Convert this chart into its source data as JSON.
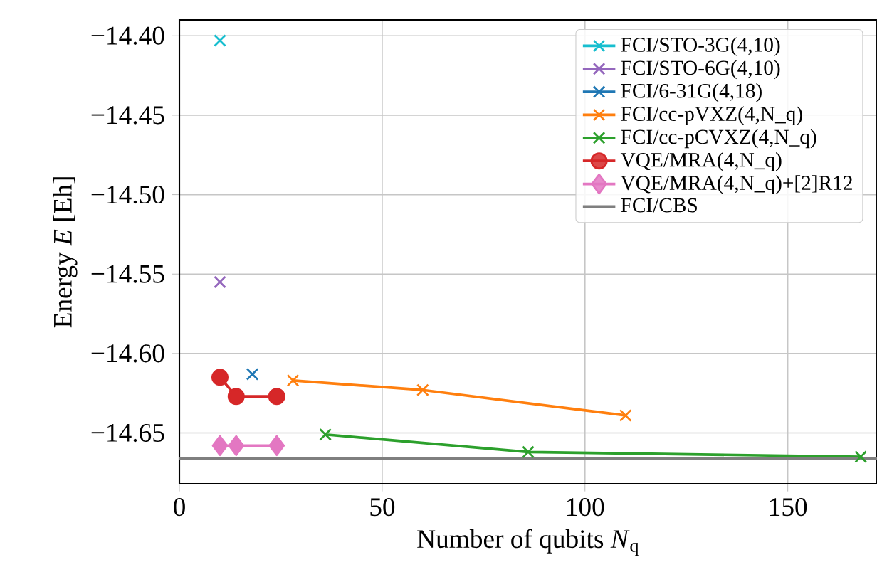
{
  "chart_data": {
    "type": "line",
    "xlabel": "Number of qubits *N*$_{q}$",
    "ylabel": "Energy *E* [Eh]",
    "xlim": [
      0,
      172
    ],
    "ylim": [
      -14.682,
      -14.39
    ],
    "xticks": [
      0,
      50,
      100,
      150
    ],
    "yticks": [
      {
        "value": -14.4,
        "label": "−14.40"
      },
      {
        "value": -14.45,
        "label": "−14.45"
      },
      {
        "value": -14.5,
        "label": "−14.50"
      },
      {
        "value": -14.55,
        "label": "−14.55"
      },
      {
        "value": -14.6,
        "label": "−14.60"
      },
      {
        "value": -14.65,
        "label": "−14.65"
      }
    ],
    "grid": true,
    "legend": "top right",
    "series": [
      {
        "name": "FCI/STO-3G(4,10)",
        "color": "#17becf",
        "marker": "cross",
        "x": [
          10
        ],
        "values": [
          -14.403
        ]
      },
      {
        "name": "FCI/STO-6G(4,10)",
        "color": "#9467bd",
        "marker": "cross",
        "x": [
          10
        ],
        "values": [
          -14.555
        ]
      },
      {
        "name": "FCI/6-31G(4,18)",
        "color": "#1f77b4",
        "marker": "cross",
        "x": [
          18
        ],
        "values": [
          -14.613
        ]
      },
      {
        "name": "FCI/cc-pVXZ(4,N_q)",
        "color": "#ff7f0e",
        "marker": "cross",
        "x": [
          28,
          60,
          110
        ],
        "values": [
          -14.617,
          -14.623,
          -14.639
        ]
      },
      {
        "name": "FCI/cc-pCVXZ(4,N_q)",
        "color": "#2ca02c",
        "marker": "cross",
        "x": [
          36,
          86,
          168
        ],
        "values": [
          -14.651,
          -14.662,
          -14.665
        ]
      },
      {
        "name": "VQE/MRA(4,N_q)",
        "color": "#d62728",
        "marker": "circle",
        "x": [
          10,
          14,
          24
        ],
        "values": [
          -14.615,
          -14.627,
          -14.627
        ]
      },
      {
        "name": "VQE/MRA(4,N_q)+[2]R12",
        "color": "#e377c2",
        "marker": "diamond",
        "x": [
          10,
          14,
          24
        ],
        "values": [
          -14.658,
          -14.658,
          -14.658
        ]
      },
      {
        "name": "FCI/CBS",
        "color": "#7f7f7f",
        "marker": "none",
        "x": [
          0,
          172
        ],
        "values": [
          -14.666,
          -14.666
        ]
      }
    ]
  }
}
